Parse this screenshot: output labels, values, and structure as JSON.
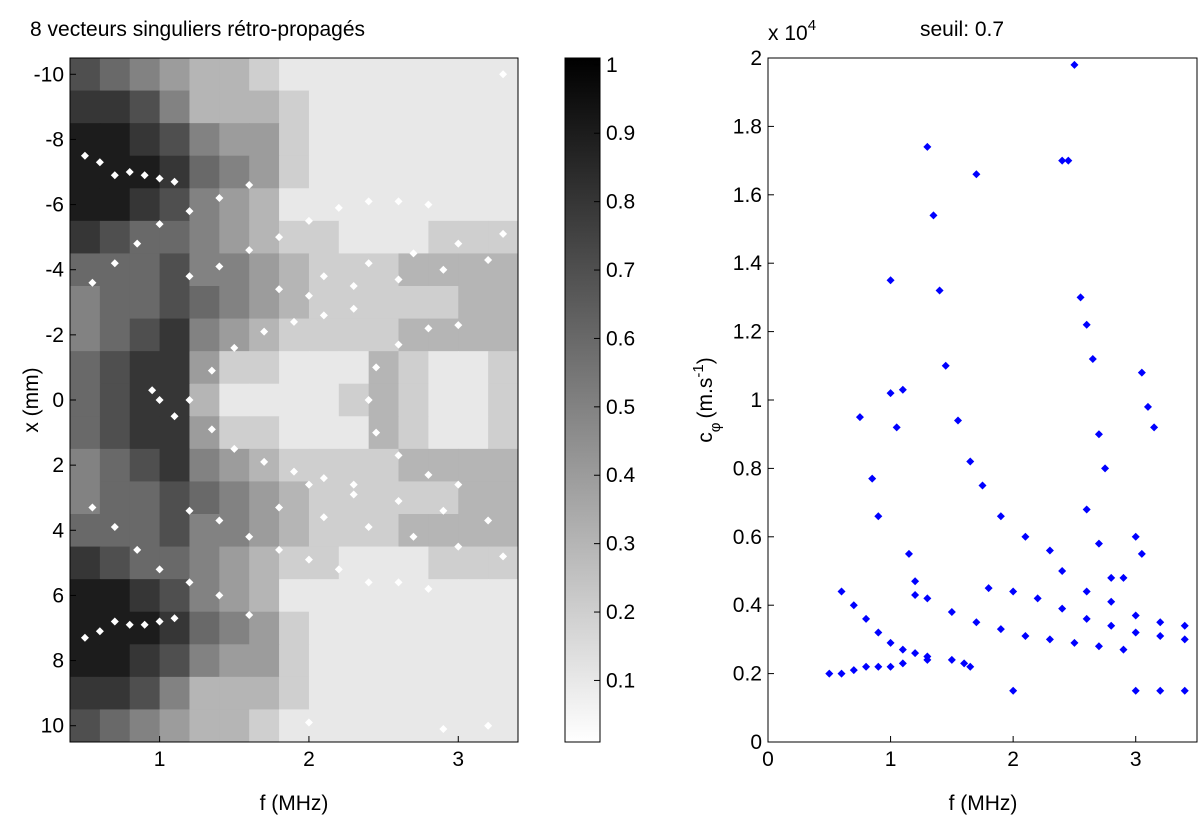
{
  "chart_data": [
    {
      "type": "heatmap",
      "title": "8 vecteurs singuliers rétro-propagés",
      "xlabel": "f (MHz)",
      "ylabel": "x (mm)",
      "xlim": [
        0.4,
        3.4
      ],
      "ylim": [
        -10.5,
        10.5
      ],
      "y_reversed": true,
      "xticks": [
        1,
        2,
        3
      ],
      "yticks": [
        -10,
        -8,
        -6,
        -4,
        -2,
        0,
        2,
        4,
        6,
        8,
        10
      ],
      "x": [
        0.5,
        0.7,
        0.9,
        1.1,
        1.3,
        1.5,
        1.7,
        1.9,
        2.1,
        2.3,
        2.5,
        2.7,
        2.9,
        3.1,
        3.3
      ],
      "y": [
        -10,
        -9,
        -8,
        -7,
        -6,
        -5,
        -4,
        -3,
        -2,
        -1,
        0,
        1,
        2,
        3,
        4,
        5,
        6,
        7,
        8,
        9,
        10
      ],
      "z": [
        [
          0.7,
          0.6,
          0.5,
          0.4,
          0.3,
          0.3,
          0.2,
          0.1,
          0.1,
          0.1,
          0.1,
          0.1,
          0.1,
          0.1,
          0.1
        ],
        [
          0.8,
          0.8,
          0.7,
          0.5,
          0.3,
          0.3,
          0.3,
          0.2,
          0.1,
          0.1,
          0.1,
          0.1,
          0.1,
          0.1,
          0.1
        ],
        [
          0.9,
          0.9,
          0.8,
          0.7,
          0.5,
          0.4,
          0.4,
          0.2,
          0.1,
          0.1,
          0.1,
          0.1,
          0.1,
          0.1,
          0.1
        ],
        [
          0.9,
          0.9,
          0.9,
          0.8,
          0.6,
          0.5,
          0.4,
          0.2,
          0.1,
          0.1,
          0.1,
          0.1,
          0.1,
          0.1,
          0.1
        ],
        [
          0.9,
          0.9,
          0.8,
          0.7,
          0.5,
          0.4,
          0.3,
          0.1,
          0.1,
          0.1,
          0.1,
          0.1,
          0.1,
          0.1,
          0.1
        ],
        [
          0.8,
          0.7,
          0.6,
          0.6,
          0.5,
          0.4,
          0.3,
          0.2,
          0.2,
          0.1,
          0.1,
          0.1,
          0.2,
          0.2,
          0.2
        ],
        [
          0.6,
          0.6,
          0.6,
          0.7,
          0.5,
          0.5,
          0.4,
          0.3,
          0.2,
          0.2,
          0.2,
          0.3,
          0.3,
          0.3,
          0.3
        ],
        [
          0.5,
          0.6,
          0.6,
          0.7,
          0.6,
          0.5,
          0.4,
          0.3,
          0.2,
          0.2,
          0.2,
          0.2,
          0.2,
          0.3,
          0.3
        ],
        [
          0.5,
          0.6,
          0.7,
          0.8,
          0.5,
          0.4,
          0.3,
          0.2,
          0.2,
          0.2,
          0.2,
          0.3,
          0.3,
          0.3,
          0.3
        ],
        [
          0.6,
          0.7,
          0.8,
          0.8,
          0.4,
          0.2,
          0.2,
          0.1,
          0.1,
          0.1,
          0.3,
          0.2,
          0.1,
          0.1,
          0.2
        ],
        [
          0.6,
          0.7,
          0.8,
          0.8,
          0.3,
          0.1,
          0.1,
          0.1,
          0.1,
          0.2,
          0.3,
          0.2,
          0.1,
          0.1,
          0.2
        ],
        [
          0.6,
          0.7,
          0.8,
          0.8,
          0.4,
          0.2,
          0.2,
          0.1,
          0.1,
          0.1,
          0.3,
          0.2,
          0.1,
          0.1,
          0.2
        ],
        [
          0.5,
          0.6,
          0.7,
          0.8,
          0.5,
          0.4,
          0.3,
          0.2,
          0.2,
          0.2,
          0.2,
          0.3,
          0.3,
          0.3,
          0.3
        ],
        [
          0.5,
          0.6,
          0.6,
          0.7,
          0.6,
          0.5,
          0.4,
          0.3,
          0.2,
          0.2,
          0.2,
          0.2,
          0.2,
          0.3,
          0.3
        ],
        [
          0.6,
          0.6,
          0.6,
          0.7,
          0.5,
          0.5,
          0.4,
          0.3,
          0.2,
          0.2,
          0.2,
          0.3,
          0.3,
          0.3,
          0.3
        ],
        [
          0.8,
          0.7,
          0.6,
          0.6,
          0.5,
          0.4,
          0.3,
          0.2,
          0.2,
          0.1,
          0.1,
          0.1,
          0.2,
          0.2,
          0.2
        ],
        [
          0.9,
          0.9,
          0.8,
          0.7,
          0.5,
          0.4,
          0.3,
          0.1,
          0.1,
          0.1,
          0.1,
          0.1,
          0.1,
          0.1,
          0.1
        ],
        [
          0.9,
          0.9,
          0.9,
          0.8,
          0.6,
          0.5,
          0.4,
          0.2,
          0.1,
          0.1,
          0.1,
          0.1,
          0.1,
          0.1,
          0.1
        ],
        [
          0.9,
          0.9,
          0.8,
          0.7,
          0.5,
          0.4,
          0.4,
          0.2,
          0.1,
          0.1,
          0.1,
          0.1,
          0.1,
          0.1,
          0.1
        ],
        [
          0.8,
          0.8,
          0.7,
          0.5,
          0.3,
          0.3,
          0.3,
          0.2,
          0.1,
          0.1,
          0.1,
          0.1,
          0.1,
          0.1,
          0.1
        ],
        [
          0.7,
          0.6,
          0.5,
          0.4,
          0.3,
          0.3,
          0.2,
          0.1,
          0.1,
          0.1,
          0.1,
          0.1,
          0.1,
          0.1,
          0.1
        ]
      ],
      "colorbar": {
        "lim": [
          0.01,
          1.01
        ],
        "ticks": [
          0.1,
          0.2,
          0.3,
          0.4,
          0.5,
          0.6,
          0.7,
          0.8,
          0.9,
          1
        ]
      },
      "points": {
        "color": "#ffffff",
        "x": [
          0.5,
          0.6,
          0.7,
          0.8,
          0.9,
          1.0,
          1.1,
          0.55,
          0.7,
          0.85,
          1.0,
          1.2,
          1.4,
          1.6,
          1.2,
          1.4,
          1.6,
          1.8,
          2.0,
          2.2,
          2.4,
          2.6,
          2.8,
          1.35,
          1.5,
          1.7,
          1.9,
          2.1,
          2.3,
          1.8,
          2.1,
          2.4,
          2.7,
          3.0,
          3.3,
          2.0,
          2.3,
          2.6,
          2.9,
          3.2,
          0.5,
          0.6,
          0.7,
          0.8,
          0.9,
          1.0,
          1.1,
          0.55,
          0.7,
          0.85,
          1.0,
          1.2,
          1.4,
          1.6,
          1.2,
          1.4,
          1.6,
          1.8,
          2.0,
          2.2,
          2.4,
          2.6,
          2.8,
          1.35,
          1.5,
          1.7,
          1.9,
          2.1,
          2.3,
          1.8,
          2.1,
          2.4,
          2.7,
          3.0,
          3.3,
          2.0,
          2.3,
          2.6,
          2.9,
          3.2,
          1.2,
          2.4,
          2.45,
          2.6,
          2.8,
          3.0,
          2.45,
          2.6,
          2.8,
          3.0,
          1.0,
          1.1,
          0.95,
          3.3,
          3.2,
          2.9,
          2.0
        ],
        "y": [
          -7.5,
          -7.3,
          -6.9,
          -7.0,
          -6.9,
          -6.8,
          -6.7,
          -3.6,
          -4.2,
          -4.8,
          -5.4,
          -5.8,
          -6.2,
          -6.6,
          -3.8,
          -4.1,
          -4.6,
          -5.0,
          -5.5,
          -5.9,
          -6.1,
          -6.1,
          -6.0,
          -0.9,
          -1.6,
          -2.1,
          -2.4,
          -2.6,
          -2.8,
          -3.4,
          -3.8,
          -4.2,
          -4.5,
          -4.8,
          -5.1,
          -3.2,
          -3.5,
          -3.7,
          -4.0,
          -4.3,
          7.3,
          7.1,
          6.8,
          6.9,
          6.9,
          6.8,
          6.7,
          3.3,
          3.9,
          4.6,
          5.2,
          5.6,
          6.0,
          6.6,
          3.4,
          3.7,
          4.2,
          4.6,
          4.9,
          5.2,
          5.6,
          5.6,
          5.8,
          0.9,
          1.5,
          1.9,
          2.2,
          2.4,
          2.6,
          3.3,
          3.6,
          3.9,
          4.2,
          4.5,
          4.8,
          2.6,
          2.9,
          3.1,
          3.4,
          3.7,
          0.0,
          0.0,
          -1.0,
          -1.7,
          -2.2,
          -2.3,
          1.0,
          1.7,
          2.3,
          2.6,
          0.0,
          0.5,
          -0.3,
          -10.0,
          10.0,
          10.1,
          9.9
        ]
      }
    },
    {
      "type": "scatter",
      "title": "seuil: 0.7",
      "xlabel": "f (MHz)",
      "ylabel": {
        "text": "c",
        "subscript": "φ",
        "unit": "(m.s",
        "unit_superscript": "-1",
        "unit_close": ")"
      },
      "exponent": {
        "base": "x 10",
        "power": "4"
      },
      "xlim": [
        0,
        3.5
      ],
      "ylim": [
        0,
        2
      ],
      "xticks": [
        0,
        1,
        2,
        3
      ],
      "yticks": [
        0,
        0.2,
        0.4,
        0.6,
        0.8,
        1,
        1.2,
        1.4,
        1.6,
        1.8,
        2
      ],
      "series": [
        {
          "color": "#0000ff",
          "x": [
            0.5,
            0.6,
            0.7,
            0.8,
            0.9,
            1.0,
            1.1,
            1.3,
            1.5,
            1.6,
            1.65,
            0.6,
            0.7,
            0.8,
            0.9,
            1.0,
            1.1,
            1.2,
            1.3,
            1.2,
            1.3,
            1.5,
            1.7,
            1.9,
            2.1,
            2.3,
            2.5,
            2.7,
            2.9,
            1.8,
            2.0,
            2.2,
            2.4,
            2.6,
            2.8,
            3.0,
            3.2,
            3.4,
            1.3,
            1.35,
            1.4,
            1.45,
            1.55,
            1.65,
            1.75,
            1.9,
            2.1,
            2.3,
            2.4,
            2.6,
            2.8,
            3.0,
            3.2,
            3.4,
            2.5,
            2.45,
            2.55,
            2.6,
            2.65,
            2.7,
            2.75,
            2.6,
            2.7,
            2.8,
            3.05,
            3.1,
            3.15,
            3.0,
            3.05,
            2.9,
            0.75,
            0.85,
            0.9,
            1.0,
            1.0,
            1.05,
            1.1,
            1.15,
            1.2,
            1.7,
            2.0,
            2.4,
            3.0,
            3.2,
            3.4
          ],
          "y": [
            0.2,
            0.2,
            0.21,
            0.22,
            0.22,
            0.22,
            0.23,
            0.24,
            0.24,
            0.23,
            0.22,
            0.44,
            0.4,
            0.36,
            0.32,
            0.29,
            0.27,
            0.26,
            0.25,
            0.43,
            0.42,
            0.38,
            0.35,
            0.33,
            0.31,
            0.3,
            0.29,
            0.28,
            0.27,
            0.45,
            0.44,
            0.42,
            0.39,
            0.36,
            0.34,
            0.32,
            0.31,
            0.3,
            1.74,
            1.54,
            1.32,
            1.1,
            0.94,
            0.82,
            0.75,
            0.66,
            0.6,
            0.56,
            0.5,
            0.44,
            0.41,
            0.37,
            0.35,
            0.34,
            1.98,
            1.7,
            1.3,
            1.22,
            1.12,
            0.9,
            0.8,
            0.68,
            0.58,
            0.48,
            1.08,
            0.98,
            0.92,
            0.6,
            0.55,
            0.48,
            0.95,
            0.77,
            0.66,
            1.35,
            1.02,
            0.92,
            1.03,
            0.55,
            0.47,
            1.66,
            0.15,
            1.7,
            0.15,
            0.15,
            0.15
          ]
        }
      ]
    }
  ]
}
